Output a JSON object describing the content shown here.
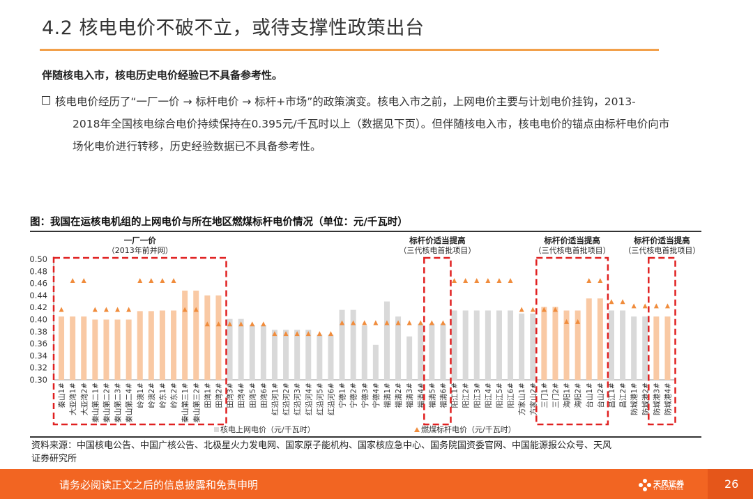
{
  "header": {
    "title": "4.2 核电电价不破不立，或待支撑性政策出台",
    "lead": "伴随核电入市，核电历史电价经验已不具备参考性。",
    "para_line1": "核电电价经历了“一厂一价 → 标杆电价 → 标杆+市场”的政策演变。核电入市之前，上网电价主要与计划电价挂钩，2013-",
    "para_line2": "2018年全国核电综合电价持续保持在0.395元/千瓦时以上（数据见下页）。但伴随核电入市，核电电价的锚点由标杆电价向市",
    "para_line3": "场化电价进行转移，历史经验数据已不具备参考性。"
  },
  "figure": {
    "title": "图：我国在运核电机组的上网电价与所在地区燃煤标杆电价情况（单位：元/千瓦时）",
    "source_line1": "资料来源：中国核电公告、中国广核公告、北极星火力发电网、国家原子能机构、国家核应急中心、国务院国资委官网、中国能源报公众号、天风",
    "source_line2": "证券研究所"
  },
  "footer": {
    "disclaimer": "请务必阅读正文之后的信息披露和免责申明",
    "logo_text": "天风证券",
    "logo_sub": "TF SECURITIES",
    "page": "26"
  },
  "chart_data": {
    "type": "bar",
    "ylim": [
      0.3,
      0.5
    ],
    "yticks": [
      "0.30",
      "0.32",
      "0.34",
      "0.36",
      "0.38",
      "0.40",
      "0.42",
      "0.44",
      "0.46",
      "0.48",
      "0.50"
    ],
    "categories": [
      "秦山1#",
      "大亚湾1#",
      "大亚湾2#",
      "秦山第二1#",
      "秦山第二2#",
      "秦山第二3#",
      "秦山第二4#",
      "岭澳1#",
      "岭澳2#",
      "岭东1#",
      "岭东2#",
      "秦山第三1#",
      "秦山第三2#",
      "田湾1#",
      "田湾2#",
      "田湾3#",
      "田湾4#",
      "田湾5#",
      "田湾6#",
      "红沿河1#",
      "红沿河2#",
      "红沿河3#",
      "红沿河4#",
      "红沿河5#",
      "红沿河6#",
      "宁德1#",
      "宁德2#",
      "宁德3#",
      "宁德4#",
      "福清1#",
      "福清2#",
      "福清3#",
      "福清4#",
      "福清5#",
      "福清6#",
      "阳江1#",
      "阳江2#",
      "阳江3#",
      "阳江4#",
      "阳江5#",
      "阳江6#",
      "方家山1#",
      "方家山2#",
      "三门1#",
      "三门2#",
      "海阳1#",
      "海阳2#",
      "台山1#",
      "台山2#",
      "昌江1#",
      "昌江2#",
      "防城港1#",
      "防城港2#",
      "防城港3#",
      "防城港4#"
    ],
    "series": [
      {
        "name": "核电上网电价（元/千瓦时）",
        "color": "#f9c9a4",
        "color_alt": "#d9d9d9",
        "values": [
          0.405,
          0.405,
          0.405,
          0.4,
          0.4,
          0.4,
          0.4,
          0.414,
          0.414,
          0.415,
          0.415,
          0.448,
          0.448,
          0.44,
          0.44,
          0.401,
          0.401,
          0.391,
          0.391,
          0.383,
          0.383,
          0.383,
          0.383,
          0.375,
          0.375,
          0.416,
          0.416,
          0.39,
          0.358,
          0.43,
          0.405,
          0.372,
          0.393,
          0.393,
          0.393,
          0.415,
          0.415,
          0.415,
          0.415,
          0.415,
          0.415,
          0.41,
          0.41,
          0.421,
          0.421,
          0.415,
          0.415,
          0.435,
          0.435,
          0.415,
          0.415,
          0.405,
          0.405,
          0.405,
          0.405
        ],
        "highlight": [
          true,
          true,
          true,
          true,
          true,
          true,
          true,
          true,
          true,
          true,
          true,
          true,
          true,
          true,
          true,
          false,
          false,
          false,
          false,
          false,
          false,
          false,
          false,
          false,
          false,
          false,
          false,
          false,
          false,
          false,
          false,
          false,
          false,
          false,
          false,
          false,
          false,
          false,
          false,
          false,
          false,
          false,
          false,
          true,
          true,
          true,
          true,
          true,
          true,
          false,
          false,
          false,
          false,
          true,
          true
        ]
      },
      {
        "name": "燃煤标杆电价（元/千瓦时）",
        "color": "#f08c3c",
        "values": [
          0.415,
          0.463,
          0.463,
          0.415,
          0.415,
          0.415,
          0.415,
          0.463,
          0.463,
          0.463,
          0.463,
          0.415,
          0.415,
          0.391,
          0.391,
          0.391,
          0.391,
          0.391,
          0.391,
          0.375,
          0.375,
          0.375,
          0.375,
          0.375,
          0.375,
          0.393,
          0.393,
          0.393,
          0.393,
          0.393,
          0.393,
          0.393,
          0.393,
          0.393,
          0.393,
          0.463,
          0.463,
          0.463,
          0.463,
          0.463,
          0.463,
          0.415,
          0.415,
          0.415,
          0.415,
          0.395,
          0.395,
          0.463,
          0.463,
          0.428,
          0.428,
          0.421,
          0.421,
          0.421,
          0.421
        ]
      }
    ],
    "groups": [
      {
        "label": "一厂一价",
        "sublabel": "（2013年前并网）",
        "start": 0,
        "end": 14
      },
      {
        "label": "标杆价适当提高",
        "sublabel": "（三代核电首批项目）",
        "start": 33,
        "end": 34
      },
      {
        "label": "标杆价适当提高",
        "sublabel": "（三代核电首批项目）",
        "start": 43,
        "end": 48
      },
      {
        "label": "标杆价适当提高",
        "sublabel": "（三代核电首批项目）",
        "start": 53,
        "end": 54
      }
    ],
    "highlight_box_color": "#e02020"
  }
}
